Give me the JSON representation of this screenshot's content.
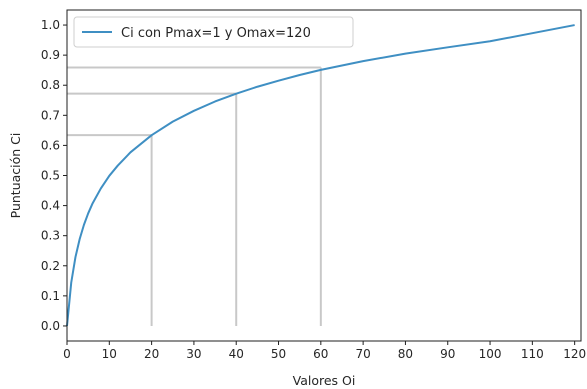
{
  "chart_data": {
    "type": "line",
    "xlabel": "Valores Oi",
    "ylabel": "Puntuación Ci",
    "xlim": [
      0,
      121.5
    ],
    "ylim": [
      -0.05,
      1.05
    ],
    "x_ticks": [
      0,
      10,
      20,
      30,
      40,
      50,
      60,
      70,
      80,
      90,
      100,
      110,
      120
    ],
    "y_ticks": [
      "0.0",
      "0.1",
      "0.2",
      "0.3",
      "0.4",
      "0.5",
      "0.6",
      "0.7",
      "0.8",
      "0.9",
      "1.0"
    ],
    "grid": false,
    "legend_position": "top-left",
    "series": [
      {
        "name": "Ci con Pmax=1 y Omax=120",
        "color": "#3f8fc3",
        "x": [
          0,
          1,
          2,
          3,
          4,
          5,
          6,
          8,
          10,
          12,
          15,
          20,
          25,
          30,
          35,
          40,
          45,
          50,
          55,
          60,
          70,
          80,
          90,
          100,
          110,
          120
        ],
        "y": [
          0.0,
          0.144,
          0.229,
          0.289,
          0.336,
          0.374,
          0.406,
          0.457,
          0.499,
          0.533,
          0.577,
          0.634,
          0.679,
          0.715,
          0.746,
          0.772,
          0.795,
          0.815,
          0.834,
          0.851,
          0.88,
          0.905,
          0.926,
          0.946,
          0.973,
          1.0
        ]
      }
    ],
    "reference_lines": [
      {
        "x": 20,
        "y": 0.634,
        "color": "#c8c8c8"
      },
      {
        "x": 40,
        "y": 0.772,
        "color": "#c8c8c8"
      },
      {
        "x": 60,
        "y": 0.859,
        "color": "#c8c8c8"
      }
    ]
  }
}
